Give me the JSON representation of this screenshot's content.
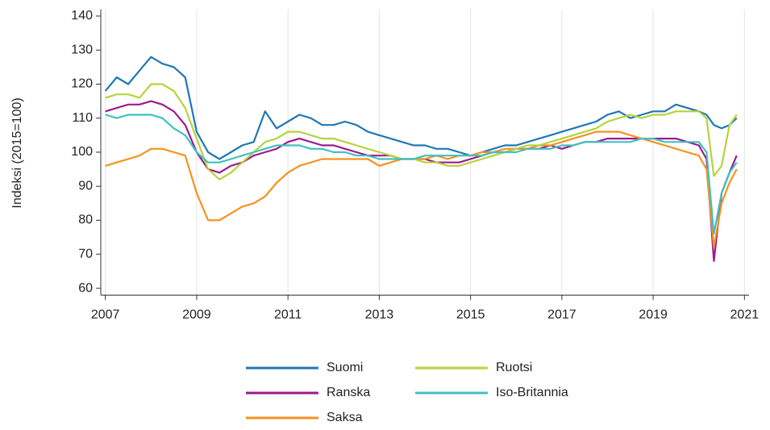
{
  "chart_data": {
    "type": "line",
    "y_label": "Indeksi (2015=100)",
    "xlim": [
      2006.9,
      2021.1
    ],
    "xticks": [
      2007,
      2009,
      2011,
      2013,
      2015,
      2017,
      2019,
      2021
    ],
    "ylim": [
      58,
      142
    ],
    "yticks": [
      60,
      70,
      80,
      90,
      100,
      110,
      120,
      130,
      140
    ],
    "grid": "x",
    "x": [
      2007,
      2007.25,
      2007.5,
      2007.75,
      2008,
      2008.25,
      2008.5,
      2008.75,
      2009,
      2009.25,
      2009.5,
      2009.75,
      2010,
      2010.25,
      2010.5,
      2010.75,
      2011,
      2011.25,
      2011.5,
      2011.75,
      2012,
      2012.25,
      2012.5,
      2012.75,
      2013,
      2013.25,
      2013.5,
      2013.75,
      2014,
      2014.25,
      2014.5,
      2014.75,
      2015,
      2015.25,
      2015.5,
      2015.75,
      2016,
      2016.25,
      2016.5,
      2016.75,
      2017,
      2017.25,
      2017.5,
      2017.75,
      2018,
      2018.25,
      2018.5,
      2018.75,
      2019,
      2019.25,
      2019.5,
      2019.75,
      2020,
      2020.17,
      2020.33,
      2020.5,
      2020.67,
      2020.83
    ],
    "series": [
      {
        "name": "Suomi",
        "color": "#2077b4",
        "values": [
          118,
          122,
          120,
          124,
          128,
          126,
          125,
          122,
          106,
          100,
          98,
          100,
          102,
          103,
          112,
          107,
          109,
          111,
          110,
          108,
          108,
          109,
          108,
          106,
          105,
          104,
          103,
          102,
          102,
          101,
          101,
          100,
          99,
          100,
          101,
          102,
          102,
          103,
          104,
          105,
          106,
          107,
          108,
          109,
          111,
          112,
          110,
          111,
          112,
          112,
          114,
          113,
          112,
          111,
          108,
          107,
          108,
          110
        ]
      },
      {
        "name": "Ranska",
        "color": "#9e1a8d",
        "values": [
          112,
          113,
          114,
          114,
          115,
          114,
          112,
          108,
          100,
          95,
          94,
          96,
          97,
          99,
          100,
          101,
          103,
          104,
          103,
          102,
          102,
          101,
          100,
          99,
          99,
          99,
          98,
          98,
          98,
          97,
          97,
          97,
          98,
          99,
          100,
          100,
          101,
          101,
          101,
          102,
          101,
          102,
          103,
          103,
          104,
          104,
          104,
          104,
          104,
          104,
          104,
          103,
          102,
          98,
          68,
          88,
          94,
          99
        ]
      },
      {
        "name": "Saksa",
        "color": "#f5921e",
        "values": [
          96,
          97,
          98,
          99,
          101,
          101,
          100,
          99,
          88,
          80,
          80,
          82,
          84,
          85,
          87,
          91,
          94,
          96,
          97,
          98,
          98,
          98,
          98,
          98,
          96,
          97,
          98,
          98,
          98,
          99,
          98,
          99,
          99,
          100,
          100,
          101,
          101,
          101,
          102,
          102,
          103,
          104,
          105,
          106,
          106,
          106,
          105,
          104,
          103,
          102,
          101,
          100,
          99,
          95,
          72,
          85,
          91,
          95
        ]
      },
      {
        "name": "Ruotsi",
        "color": "#b5d33d",
        "values": [
          116,
          117,
          117,
          116,
          120,
          120,
          118,
          113,
          104,
          95,
          92,
          94,
          97,
          100,
          103,
          104,
          106,
          106,
          105,
          104,
          104,
          103,
          102,
          101,
          100,
          99,
          98,
          98,
          97,
          97,
          96,
          96,
          97,
          98,
          99,
          100,
          101,
          102,
          102,
          103,
          104,
          105,
          106,
          107,
          109,
          110,
          111,
          110,
          111,
          111,
          112,
          112,
          112,
          110,
          93,
          96,
          108,
          111
        ]
      },
      {
        "name": "Iso-Britannia",
        "color": "#3fc1c0",
        "values": [
          111,
          110,
          111,
          111,
          111,
          110,
          107,
          105,
          100,
          97,
          97,
          98,
          99,
          100,
          101,
          102,
          102,
          102,
          101,
          101,
          100,
          100,
          99,
          99,
          98,
          98,
          98,
          98,
          99,
          99,
          99,
          99,
          99,
          99,
          100,
          100,
          100,
          101,
          101,
          101,
          102,
          102,
          103,
          103,
          103,
          103,
          103,
          104,
          104,
          103,
          103,
          103,
          103,
          100,
          76,
          88,
          94,
          97
        ]
      }
    ]
  }
}
